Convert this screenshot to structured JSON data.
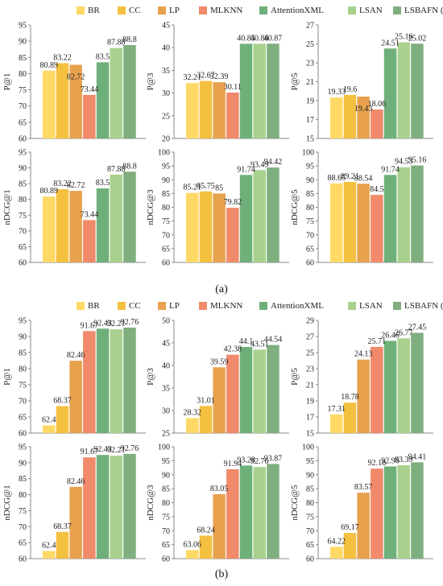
{
  "legend": [
    {
      "name": "BR",
      "color": "#FFD966"
    },
    {
      "name": "CC",
      "color": "#F4C040"
    },
    {
      "name": "LP",
      "color": "#E8A24E"
    },
    {
      "name": "MLKNN",
      "color": "#F08A6A"
    },
    {
      "name": "AttentionXML",
      "color": "#6FB07A"
    },
    {
      "name": "LSAN",
      "color": "#A9D18E"
    },
    {
      "name": "LSBAFN (ours)",
      "color": "#7FAE7F"
    }
  ],
  "panels": {
    "a": "(a)",
    "b": "(b)"
  },
  "chart_data": [
    {
      "type": "bar",
      "panel": "(a)",
      "ylabel": "P@1",
      "ylim": [
        60,
        95
      ],
      "yticks": [
        60,
        65,
        70,
        75,
        80,
        85,
        90,
        95
      ],
      "values": [
        80.89,
        83.22,
        82.72,
        73.44,
        83.5,
        87.88,
        88.8
      ],
      "labels": [
        "80.89",
        "83.22",
        "82.72",
        "73.44",
        "83.5",
        "87.88",
        "88.8"
      ],
      "grid": false
    },
    {
      "type": "bar",
      "panel": "(a)",
      "ylabel": "P@3",
      "ylim": [
        20,
        45
      ],
      "yticks": [
        20,
        25,
        30,
        35,
        40,
        45
      ],
      "values": [
        32.21,
        32.67,
        32.39,
        30.11,
        40.85,
        40.86,
        40.87
      ],
      "labels": [
        "32.21",
        "32.67",
        "32.39",
        "30.11",
        "40.85",
        "40.86",
        "40.87"
      ],
      "grid": false
    },
    {
      "type": "bar",
      "panel": "(a)",
      "ylabel": "P@5",
      "ylim": [
        15,
        27
      ],
      "yticks": [
        15,
        17,
        19,
        21,
        23,
        25,
        27
      ],
      "values": [
        19.33,
        19.6,
        19.43,
        18.06,
        24.51,
        25.16,
        25.02
      ],
      "labels": [
        "19.33",
        "19.6",
        "19.43",
        "18.06",
        "24.51",
        "25.16",
        "25.02"
      ],
      "grid": false
    },
    {
      "type": "bar",
      "panel": "(a)",
      "ylabel": "nDCG@1",
      "ylim": [
        60,
        95
      ],
      "yticks": [
        60,
        65,
        70,
        75,
        80,
        85,
        90,
        95
      ],
      "values": [
        80.89,
        83.22,
        82.72,
        73.44,
        83.5,
        87.88,
        88.8
      ],
      "labels": [
        "80.89",
        "83.22",
        "82.72",
        "73.44",
        "83.5",
        "87.88",
        "88.8"
      ],
      "grid": false
    },
    {
      "type": "bar",
      "panel": "(a)",
      "ylabel": "nDCG@3",
      "ylim": [
        60,
        100
      ],
      "yticks": [
        60,
        65,
        70,
        75,
        80,
        85,
        90,
        95,
        100
      ],
      "values": [
        85.21,
        85.75,
        85,
        79.82,
        91.74,
        93.49,
        94.42
      ],
      "labels": [
        "85.21",
        "85.75",
        "85",
        "79.82",
        "91.74",
        "93.49",
        "94.42"
      ],
      "grid": false
    },
    {
      "type": "bar",
      "panel": "(a)",
      "ylabel": "nDCG@5",
      "ylim": [
        60,
        100
      ],
      "yticks": [
        60,
        65,
        70,
        75,
        80,
        85,
        90,
        95,
        100
      ],
      "values": [
        88.65,
        89.21,
        88.54,
        84.5,
        91.74,
        94.53,
        95.16
      ],
      "labels": [
        "88.65",
        "89.21",
        "88.54",
        "84.5",
        "91.74",
        "94.53",
        "95.16"
      ],
      "grid": false
    },
    {
      "type": "bar",
      "panel": "(b)",
      "ylabel": "P@1",
      "ylim": [
        60,
        95
      ],
      "yticks": [
        60,
        65,
        70,
        75,
        80,
        85,
        90,
        95
      ],
      "values": [
        62.4,
        68.37,
        82.46,
        91.67,
        92.43,
        92.21,
        92.76
      ],
      "labels": [
        "62.4",
        "68.37",
        "82.46",
        "91.67",
        "92.43",
        "92.21",
        "92.76"
      ],
      "grid": false
    },
    {
      "type": "bar",
      "panel": "(b)",
      "ylabel": "P@3",
      "ylim": [
        25,
        50
      ],
      "yticks": [
        25,
        30,
        35,
        40,
        45,
        50
      ],
      "values": [
        28.32,
        31.01,
        39.59,
        42.38,
        44.1,
        43.51,
        44.54
      ],
      "labels": [
        "28.32",
        "31.01",
        "39.59",
        "42.38",
        "44.1",
        "43.51",
        "44.54"
      ],
      "grid": false
    },
    {
      "type": "bar",
      "panel": "(b)",
      "ylabel": "P@5",
      "ylim": [
        15,
        29
      ],
      "yticks": [
        15,
        17,
        19,
        21,
        23,
        25,
        27,
        29
      ],
      "values": [
        17.31,
        18.78,
        24.13,
        25.71,
        26.46,
        26.77,
        27.45
      ],
      "labels": [
        "17.31",
        "18.78",
        "24.13",
        "25.71",
        "26.46",
        "26.77",
        "27.45"
      ],
      "grid": false
    },
    {
      "type": "bar",
      "panel": "(b)",
      "ylabel": "nDCG@1",
      "ylim": [
        60,
        95
      ],
      "yticks": [
        60,
        65,
        70,
        75,
        80,
        85,
        90,
        95
      ],
      "values": [
        62.4,
        68.37,
        82.46,
        91.67,
        92.43,
        92.21,
        92.76
      ],
      "labels": [
        "62.4",
        "68.37",
        "82.46",
        "91.67",
        "92.43",
        "92.21",
        "92.76"
      ],
      "grid": false
    },
    {
      "type": "bar",
      "panel": "(b)",
      "ylabel": "nDCG@3",
      "ylim": [
        60,
        100
      ],
      "yticks": [
        60,
        65,
        70,
        75,
        80,
        85,
        90,
        95,
        100
      ],
      "values": [
        63.06,
        68.24,
        83.05,
        91.94,
        93.28,
        92.76,
        93.87
      ],
      "labels": [
        "63.06",
        "68.24",
        "83.05",
        "91.94",
        "93.28",
        "92.76",
        "93.87"
      ],
      "grid": false
    },
    {
      "type": "bar",
      "panel": "(b)",
      "ylabel": "nDCG@5",
      "ylim": [
        60,
        100
      ],
      "yticks": [
        60,
        65,
        70,
        75,
        80,
        85,
        90,
        95,
        100
      ],
      "values": [
        64.22,
        69.17,
        83.57,
        92.18,
        92.96,
        93.39,
        94.41
      ],
      "labels": [
        "64.22",
        "69.17",
        "83.57",
        "92.18",
        "92.96",
        "93.39",
        "94.41"
      ],
      "grid": false
    }
  ]
}
